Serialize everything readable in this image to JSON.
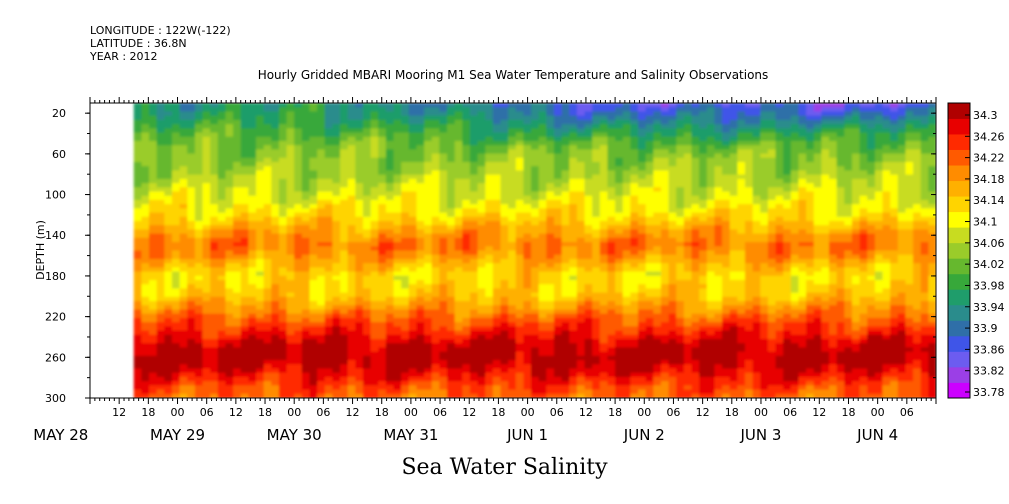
{
  "header": {
    "longitude": "LONGITUDE : 122W(-122)",
    "latitude": "LATITUDE : 36.8N",
    "year": "YEAR : 2012"
  },
  "title": "Hourly Gridded MBARI Mooring M1 Sea Water Temperature and Salinity Observations",
  "footer_label": "Sea Water Salinity",
  "colors": {
    "ramp": [
      "#cc00ff",
      "#9b3fe6",
      "#6c5cf0",
      "#3f55e8",
      "#2f6fa8",
      "#2a8c8c",
      "#1f9d6b",
      "#37a83a",
      "#66b82e",
      "#9acc2a",
      "#c8dc20",
      "#ffff00",
      "#ffd400",
      "#ffb000",
      "#ff8c00",
      "#ff5a00",
      "#ff2a00",
      "#e80000",
      "#b00000"
    ],
    "missing": "#ffffff"
  },
  "chart_data": {
    "type": "heatmap",
    "title": "Hourly Gridded MBARI Mooring M1 Sea Water Temperature and Salinity Observations",
    "xlabel": "",
    "ylabel": "DEPTH (m)",
    "colorbar_label": "Sea Water Salinity",
    "y_range": [
      10,
      300
    ],
    "y_ticks": [
      20,
      60,
      100,
      140,
      180,
      220,
      260,
      300
    ],
    "x_range": [
      "2012-05-28T06:00",
      "2012-06-04T12:00"
    ],
    "x_data_start": "2012-05-28T15:00",
    "x_hour_ticks": [
      "12",
      "18",
      "00",
      "06",
      "12",
      "18",
      "00",
      "06",
      "12",
      "18",
      "00",
      "06",
      "12",
      "18",
      "00",
      "06",
      "12",
      "18",
      "00",
      "06",
      "12",
      "18",
      "00",
      "06",
      "12",
      "18",
      "00",
      "06",
      "12",
      "18",
      "00",
      "06"
    ],
    "x_day_labels": [
      {
        "date": "2012-05-28",
        "label": "MAY 28"
      },
      {
        "date": "2012-05-29",
        "label": "MAY 29"
      },
      {
        "date": "2012-05-30",
        "label": "MAY 30"
      },
      {
        "date": "2012-05-31",
        "label": "MAY 31"
      },
      {
        "date": "2012-06-01",
        "label": "JUN  1"
      },
      {
        "date": "2012-06-02",
        "label": "JUN  2"
      },
      {
        "date": "2012-06-03",
        "label": "JUN  3"
      },
      {
        "date": "2012-06-04",
        "label": "JUN  4"
      }
    ],
    "colorbar_levels": [
      33.78,
      33.82,
      33.86,
      33.9,
      33.94,
      33.98,
      34.02,
      34.06,
      34.1,
      34.14,
      34.18,
      34.22,
      34.26,
      34.3
    ],
    "depth_profile": {
      "depths": [
        10,
        20,
        30,
        40,
        50,
        60,
        80,
        100,
        120,
        140,
        150,
        160,
        180,
        200,
        220,
        240,
        250,
        260,
        270,
        280,
        290,
        300
      ],
      "salinity": [
        33.9,
        33.92,
        33.95,
        33.98,
        34.01,
        34.03,
        34.05,
        34.08,
        34.12,
        34.18,
        34.2,
        34.18,
        34.12,
        34.14,
        34.21,
        34.27,
        34.3,
        34.31,
        34.29,
        34.26,
        34.23,
        34.21
      ]
    }
  }
}
